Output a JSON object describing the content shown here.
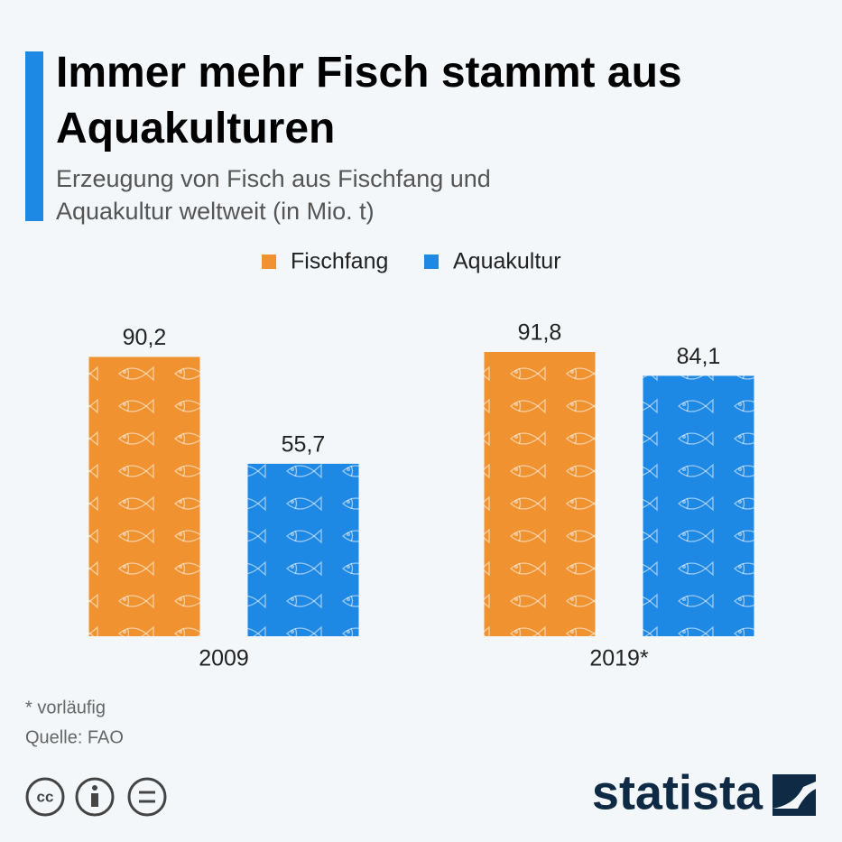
{
  "chart_data": {
    "type": "bar",
    "title": "Immer mehr Fisch stammt aus Aquakulturen",
    "subtitle": "Erzeugung von Fisch aus Fischfang und Aquakultur weltweit (in Mio. t)",
    "categories": [
      "2009",
      "2019*"
    ],
    "series": [
      {
        "name": "Fischfang",
        "color": "#f0922f",
        "values": [
          90.2,
          91.8
        ],
        "value_labels": [
          "90,2",
          "91,8"
        ]
      },
      {
        "name": "Aquakultur",
        "color": "#1e88e5",
        "values": [
          55.7,
          84.1
        ],
        "value_labels": [
          "55,7",
          "84,1"
        ]
      }
    ],
    "notes": [
      "* vorläufig",
      "Quelle: FAO"
    ],
    "cc_label": "cc",
    "logo": "statista"
  }
}
